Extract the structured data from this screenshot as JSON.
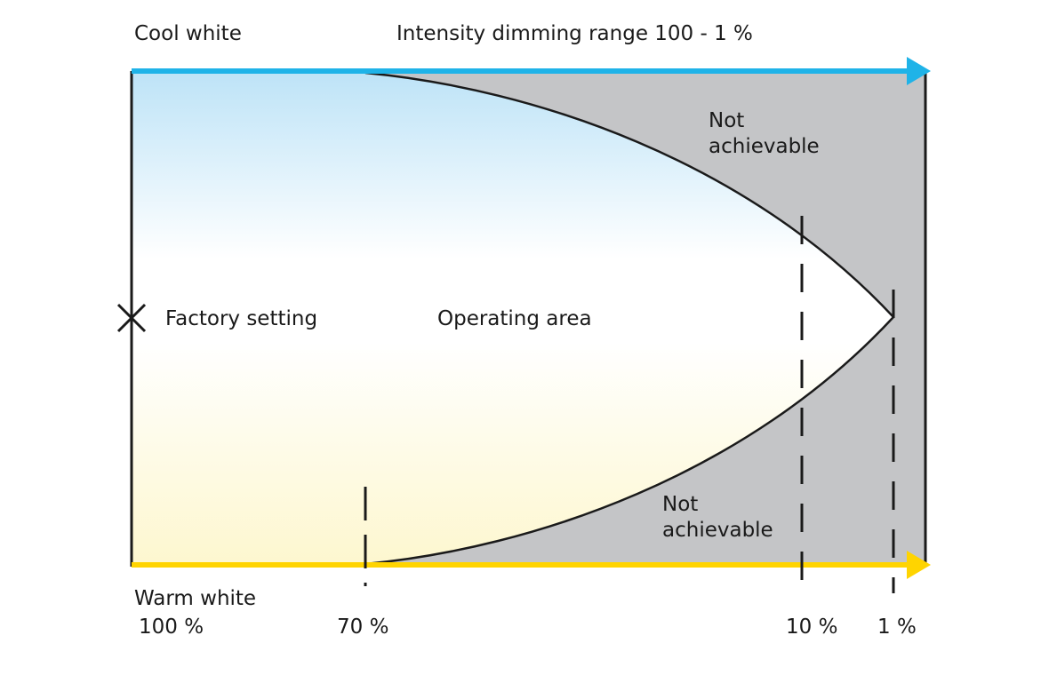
{
  "title": "Intensity dimming range 100 - 1 %",
  "top_axis": {
    "label": "Cool white",
    "color": "#1fb3e8"
  },
  "bottom_axis": {
    "label": "Warm white",
    "color": "#ffd400"
  },
  "regions": {
    "operating": "Operating area",
    "not_achievable_top": [
      "Not",
      "achievable"
    ],
    "not_achievable_bottom": [
      "Not",
      "achievable"
    ],
    "unachievable_color": "#c4c5c7"
  },
  "factory_setting": {
    "label": "Factory setting"
  },
  "ticks": [
    {
      "value": 100,
      "label": "100 %"
    },
    {
      "value": 70,
      "label": "70 %"
    },
    {
      "value": 10,
      "label": "10 %"
    },
    {
      "value": 1,
      "label": "1 %"
    }
  ],
  "gradient": {
    "cool": "#bde3f7",
    "neutral": "#ffffff",
    "warm": "#fdf7cf"
  }
}
